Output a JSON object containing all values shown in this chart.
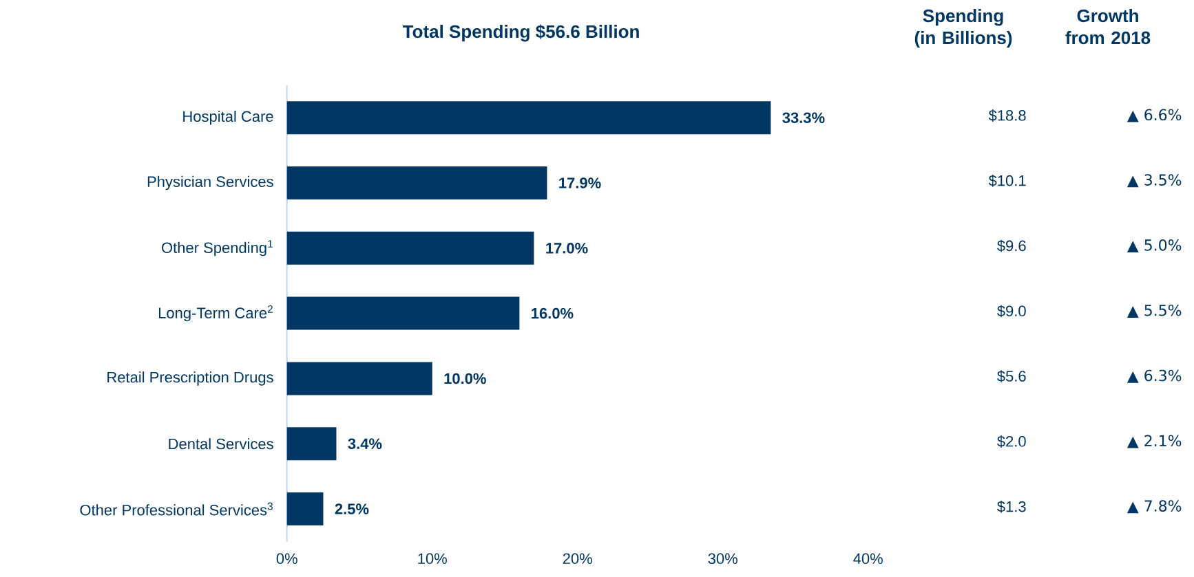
{
  "chart_data": [
    {
      "type": "bar",
      "orientation": "horizontal",
      "title": "Total Spending $56.6 Billion",
      "categories": [
        "Hospital Care",
        "Physician Services",
        "Other Spending$^{1}$",
        "Long-Term Care$^{2}$",
        "Retail Prescription Drugs",
        "Dental Services",
        "Other Professional Services$^{3}$"
      ],
      "values": [
        33.3,
        17.9,
        17.0,
        16.0,
        10.0,
        3.4,
        2.5
      ],
      "value_labels": [
        "33.3%",
        "17.9%",
        "17.0%",
        "16.0%",
        "10.0%",
        "3.4%",
        "2.5%"
      ],
      "color": "#003764",
      "xlim": [
        0,
        40
      ],
      "xticks": [
        {
          "value": 0,
          "label": "0%"
        },
        {
          "value": 10,
          "label": "10%"
        },
        {
          "value": 20,
          "label": "20%"
        },
        {
          "value": 30,
          "label": "30%"
        },
        {
          "value": 40,
          "label": "40%"
        }
      ]
    },
    {
      "type": "other",
      "title": "Spending (in Billions)",
      "annotations": [
        "$18.8",
        "$10.1",
        "$9.6",
        "$9.0",
        "$5.6",
        "$2.0",
        "$1.3"
      ]
    },
    {
      "type": "other",
      "title": "Growth from 2018",
      "annotations": [
        "▲ 6.6%",
        "▲ 3.5%",
        "▲ 5.0%",
        "▲ 5.5%",
        "▲ 6.3%",
        "▲ 2.1%",
        "▲ 7.8%"
      ]
    }
  ]
}
